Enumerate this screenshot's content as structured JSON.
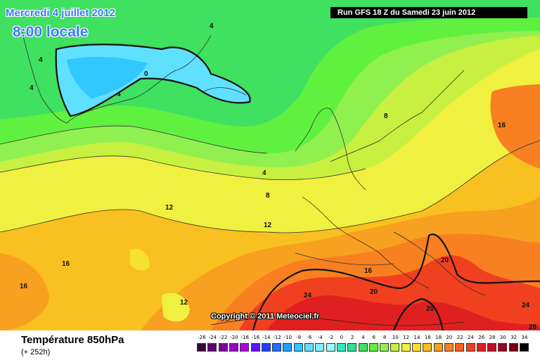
{
  "header": {
    "date": "Mercredi 4 juillet 2012",
    "time": "8:00 locale",
    "run": "Run GFS 18 Z du Samedi 23 juin 2012"
  },
  "footer": {
    "field": "Température 850hPa",
    "lead": "(+ 252h)",
    "copyright": "Copyright © 2011 Meteociel.fr"
  },
  "legend": {
    "ticks": [
      "-26",
      "-24",
      "-22",
      "-20",
      "-18",
      "-16",
      "-14",
      "-12",
      "-10",
      "-8",
      "-6",
      "-4",
      "-2",
      "0",
      "2",
      "4",
      "6",
      "8",
      "10",
      "12",
      "14",
      "16",
      "18",
      "20",
      "22",
      "24",
      "26",
      "28",
      "30",
      "32",
      "34"
    ],
    "colors": [
      "#3b0040",
      "#5a0070",
      "#7a00a0",
      "#9a00c8",
      "#b000e0",
      "#6010ff",
      "#2040ff",
      "#2070ff",
      "#20a0ff",
      "#30c8ff",
      "#60e0ff",
      "#80f0ff",
      "#90ffff",
      "#30e8c0",
      "#30e090",
      "#40e060",
      "#60f040",
      "#90f050",
      "#c8f040",
      "#f0f040",
      "#f8e030",
      "#f8c020",
      "#f8a020",
      "#f88020",
      "#f86020",
      "#f04020",
      "#e02020",
      "#c01020",
      "#a00020",
      "#700010",
      "#000000"
    ]
  },
  "contour_labels": [
    {
      "text": "0",
      "pos": "Greenland"
    },
    {
      "text": "4",
      "pos": "Greenland coast"
    },
    {
      "text": "4",
      "pos": "Iceland north"
    },
    {
      "text": "4",
      "pos": "Greenland west"
    },
    {
      "text": "4",
      "pos": "Greenland south"
    },
    {
      "text": "4",
      "pos": "North Sea"
    },
    {
      "text": "8",
      "pos": "Atlantic"
    },
    {
      "text": "8",
      "pos": "Scandinavia"
    },
    {
      "text": "12",
      "pos": "Atlantic west"
    },
    {
      "text": "12",
      "pos": "Bay of Biscay"
    },
    {
      "text": "12",
      "pos": "Atlantic south"
    },
    {
      "text": "16",
      "pos": "Atlantic southwest"
    },
    {
      "text": "16",
      "pos": "Atlantic far southwest"
    },
    {
      "text": "16",
      "pos": "Russia"
    },
    {
      "text": "16",
      "pos": "Alps"
    },
    {
      "text": "20",
      "pos": "Mediterranean"
    },
    {
      "text": "20",
      "pos": "Balkans"
    },
    {
      "text": "20",
      "pos": "Libya"
    },
    {
      "text": "24",
      "pos": "North Africa"
    },
    {
      "text": "24",
      "pos": "Middle East"
    },
    {
      "text": "28",
      "pos": "Corner"
    }
  ]
}
